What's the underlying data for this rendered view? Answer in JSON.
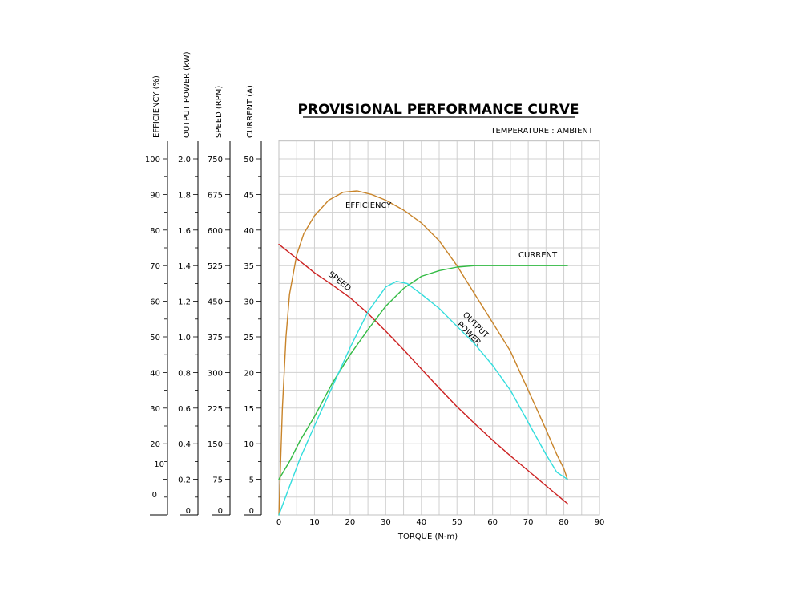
{
  "chart_data": {
    "type": "line",
    "title": "PROVISIONAL PERFORMANCE CURVE",
    "subtitle": "TEMPERATURE : AMBIENT",
    "xlabel": "TORQUE (N-m)",
    "xlim": [
      0,
      90
    ],
    "x_ticks": [
      "0",
      "10",
      "20",
      "30",
      "40",
      "50",
      "60",
      "70",
      "80",
      "90"
    ],
    "grid": true,
    "y_axes": [
      {
        "label": "EFFICIENCY (%)",
        "ticks": [
          "100",
          "90",
          "80",
          "70",
          "60",
          "50",
          "40",
          "30",
          "20",
          "10",
          "0"
        ]
      },
      {
        "label": "OUTPUT POWER (kW)",
        "ticks": [
          "2.0",
          "1.8",
          "1.6",
          "1.4",
          "1.2",
          "1.0",
          "0.8",
          "0.6",
          "0.4",
          "0.2",
          "0"
        ]
      },
      {
        "label": "SPEED (RPM)",
        "ticks": [
          "750",
          "675",
          "600",
          "525",
          "450",
          "375",
          "300",
          "225",
          "150",
          "75",
          "0"
        ]
      },
      {
        "label": "CURRENT (A)",
        "ticks": [
          "50",
          "45",
          "40",
          "35",
          "30",
          "25",
          "20",
          "15",
          "10",
          "5",
          "0"
        ]
      }
    ],
    "series": [
      {
        "name": "EFFICIENCY",
        "axis": "CURRENT (A)",
        "color": "#c8842a",
        "x": [
          0,
          1,
          2,
          3,
          5,
          7,
          10,
          14,
          18,
          22,
          26,
          30,
          35,
          40,
          45,
          50,
          55,
          60,
          65,
          70,
          75,
          78,
          80,
          81
        ],
        "y": [
          0,
          15,
          25,
          31,
          36.5,
          39.5,
          42,
          44.2,
          45.3,
          45.5,
          45,
          44.2,
          42.8,
          41,
          38.5,
          35,
          31,
          27,
          23,
          17.5,
          12,
          8.5,
          6.5,
          5
        ]
      },
      {
        "name": "SPEED",
        "axis": "CURRENT (A)",
        "color": "#cc2222",
        "x": [
          0,
          5,
          10,
          15,
          20,
          25,
          30,
          35,
          40,
          45,
          50,
          55,
          60,
          65,
          70,
          75,
          80,
          81
        ],
        "y": [
          38,
          36,
          34,
          32.3,
          30.5,
          28.3,
          25.8,
          23.2,
          20.5,
          17.8,
          15.2,
          12.8,
          10.5,
          8.3,
          6.2,
          4.1,
          2,
          1.6
        ]
      },
      {
        "name": "CURRENT",
        "axis": "CURRENT (A)",
        "color": "#33bb44",
        "x": [
          0,
          3,
          6,
          10,
          15,
          20,
          25,
          30,
          35,
          40,
          45,
          50,
          55,
          60,
          70,
          81
        ],
        "y": [
          5,
          7.5,
          10.5,
          13.8,
          18.5,
          22.5,
          26,
          29.3,
          31.8,
          33.5,
          34.3,
          34.8,
          35,
          35,
          35,
          35
        ]
      },
      {
        "name": "OUTPUT POWER",
        "axis": "CURRENT (A)",
        "color": "#33dddd",
        "x": [
          0,
          3,
          6,
          10,
          15,
          20,
          25,
          30,
          33,
          36,
          40,
          45,
          50,
          55,
          60,
          65,
          70,
          75,
          78,
          81
        ],
        "y": [
          0,
          4,
          8,
          12.5,
          18,
          23.5,
          28.5,
          32,
          32.8,
          32.5,
          31,
          29,
          26.5,
          24,
          21,
          17.5,
          13,
          8.5,
          6,
          5
        ]
      }
    ],
    "annotations": [
      "EFFICIENCY",
      "CURRENT",
      "SPEED",
      "OUTPUT",
      "POWER"
    ]
  }
}
